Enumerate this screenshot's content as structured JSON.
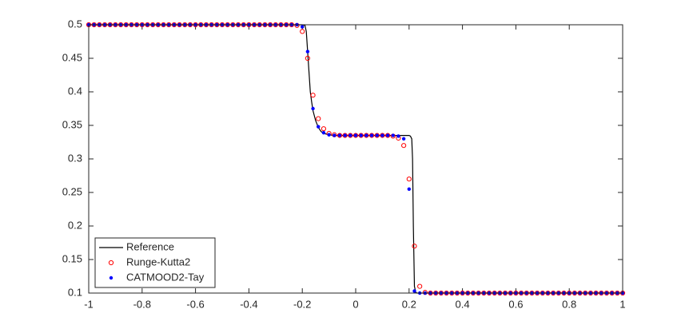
{
  "chart_data": {
    "type": "line",
    "xlim": [
      -1,
      1
    ],
    "ylim": [
      0.1,
      0.5
    ],
    "xticks": [
      -1,
      -0.8,
      -0.6,
      -0.4,
      -0.2,
      0,
      0.2,
      0.4,
      0.6,
      0.8,
      1
    ],
    "yticks": [
      0.1,
      0.15,
      0.2,
      0.25,
      0.3,
      0.35,
      0.4,
      0.45,
      0.5
    ],
    "legend": "southwest",
    "grid": false,
    "x": [
      -1,
      -0.98,
      -0.96,
      -0.94,
      -0.92,
      -0.9,
      -0.88,
      -0.86,
      -0.84,
      -0.82,
      -0.8,
      -0.78,
      -0.76,
      -0.74,
      -0.72,
      -0.7,
      -0.68,
      -0.66,
      -0.64,
      -0.62,
      -0.6,
      -0.58,
      -0.56,
      -0.54,
      -0.52,
      -0.5,
      -0.48,
      -0.46,
      -0.44,
      -0.42,
      -0.4,
      -0.38,
      -0.36,
      -0.34,
      -0.32,
      -0.3,
      -0.28,
      -0.26,
      -0.24,
      -0.22,
      -0.2,
      -0.18,
      -0.16,
      -0.14,
      -0.12,
      -0.1,
      -0.08,
      -0.06,
      -0.04,
      -0.02,
      0,
      0.02,
      0.04,
      0.06,
      0.08,
      0.1,
      0.12,
      0.14,
      0.16,
      0.18,
      0.2,
      0.22,
      0.24,
      0.26,
      0.28,
      0.3,
      0.32,
      0.34,
      0.36,
      0.38,
      0.4,
      0.42,
      0.44,
      0.46,
      0.48,
      0.5,
      0.52,
      0.54,
      0.56,
      0.58,
      0.6,
      0.62,
      0.64,
      0.66,
      0.68,
      0.7,
      0.72,
      0.74,
      0.76,
      0.78,
      0.8,
      0.82,
      0.84,
      0.86,
      0.88,
      0.9,
      0.92,
      0.94,
      0.96,
      0.98,
      1
    ],
    "series": [
      {
        "name": "Reference",
        "color": "#000000",
        "marker": "none",
        "x": [
          -1,
          -0.2,
          -0.19,
          -0.185,
          -0.18,
          -0.175,
          -0.17,
          -0.165,
          -0.16,
          -0.15,
          -0.14,
          -0.13,
          -0.12,
          -0.1,
          -0.08,
          0,
          0.1,
          0.2,
          0.205,
          0.21,
          0.213,
          0.216,
          0.22,
          0.225,
          0.23,
          1
        ],
        "values": [
          0.5,
          0.5,
          0.499,
          0.49,
          0.46,
          0.43,
          0.4,
          0.385,
          0.372,
          0.357,
          0.347,
          0.341,
          0.338,
          0.336,
          0.335,
          0.335,
          0.335,
          0.335,
          0.334,
          0.33,
          0.3,
          0.2,
          0.11,
          0.101,
          0.1,
          0.1
        ]
      },
      {
        "name": "Runge-Kutta2",
        "color": "#ff0000",
        "marker": "o",
        "values": [
          0.5,
          0.5,
          0.5,
          0.5,
          0.5,
          0.5,
          0.5,
          0.5,
          0.5,
          0.5,
          0.5,
          0.5,
          0.5,
          0.5,
          0.5,
          0.5,
          0.5,
          0.5,
          0.5,
          0.5,
          0.5,
          0.5,
          0.5,
          0.5,
          0.5,
          0.5,
          0.5,
          0.5,
          0.5,
          0.5,
          0.5,
          0.5,
          0.5,
          0.5,
          0.5,
          0.5,
          0.5,
          0.5,
          0.5,
          0.499,
          0.49,
          0.45,
          0.395,
          0.36,
          0.345,
          0.338,
          0.336,
          0.335,
          0.335,
          0.335,
          0.335,
          0.335,
          0.335,
          0.335,
          0.335,
          0.335,
          0.335,
          0.334,
          0.331,
          0.32,
          0.27,
          0.17,
          0.11,
          0.101,
          0.1,
          0.1,
          0.1,
          0.1,
          0.1,
          0.1,
          0.1,
          0.1,
          0.1,
          0.1,
          0.1,
          0.1,
          0.1,
          0.1,
          0.1,
          0.1,
          0.1,
          0.1,
          0.1,
          0.1,
          0.1,
          0.1,
          0.1,
          0.1,
          0.1,
          0.1,
          0.1,
          0.1,
          0.1,
          0.1,
          0.1,
          0.1,
          0.1,
          0.1,
          0.1,
          0.1,
          0.1
        ]
      },
      {
        "name": "CATMOOD2-Tay",
        "color": "#0000ff",
        "marker": ".",
        "values": [
          0.5,
          0.5,
          0.5,
          0.5,
          0.5,
          0.5,
          0.5,
          0.5,
          0.5,
          0.5,
          0.5,
          0.5,
          0.5,
          0.5,
          0.5,
          0.5,
          0.5,
          0.5,
          0.5,
          0.5,
          0.5,
          0.5,
          0.5,
          0.5,
          0.5,
          0.5,
          0.5,
          0.5,
          0.5,
          0.5,
          0.5,
          0.5,
          0.5,
          0.5,
          0.5,
          0.5,
          0.5,
          0.5,
          0.5,
          0.5,
          0.497,
          0.46,
          0.375,
          0.348,
          0.339,
          0.336,
          0.335,
          0.335,
          0.335,
          0.335,
          0.335,
          0.335,
          0.335,
          0.335,
          0.335,
          0.335,
          0.335,
          0.335,
          0.334,
          0.33,
          0.255,
          0.103,
          0.1,
          0.1,
          0.1,
          0.1,
          0.1,
          0.1,
          0.1,
          0.1,
          0.1,
          0.1,
          0.1,
          0.1,
          0.1,
          0.1,
          0.1,
          0.1,
          0.1,
          0.1,
          0.1,
          0.1,
          0.1,
          0.1,
          0.1,
          0.1,
          0.1,
          0.1,
          0.1,
          0.1,
          0.1,
          0.1,
          0.1,
          0.1,
          0.1,
          0.1,
          0.1,
          0.1,
          0.1,
          0.1,
          0.1
        ]
      }
    ]
  }
}
